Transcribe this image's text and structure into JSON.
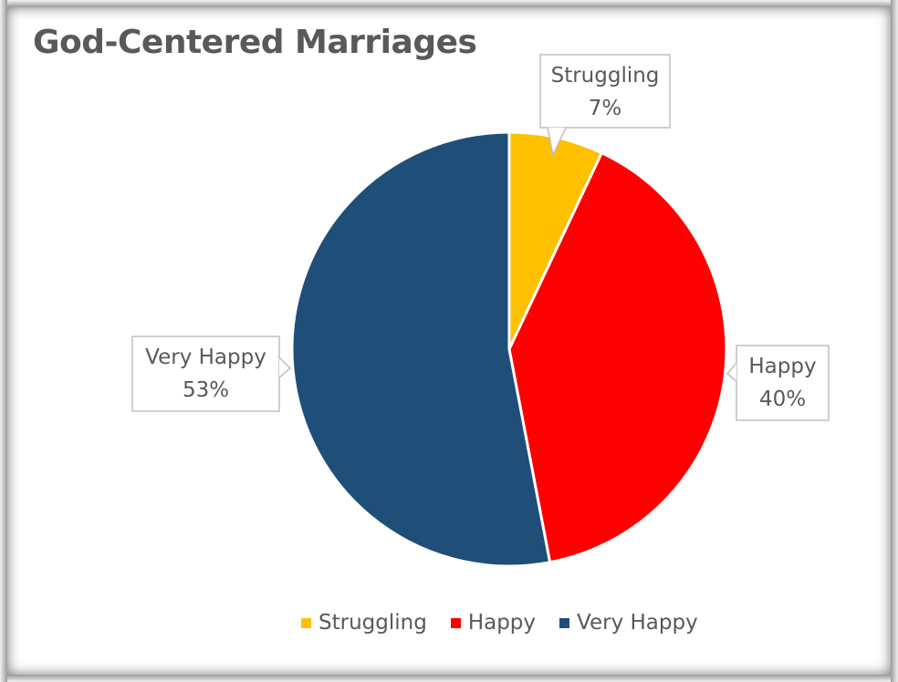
{
  "chart_data": {
    "type": "pie",
    "title": "God-Centered Marriages",
    "slices": [
      {
        "label": "Struggling",
        "value": 7,
        "display": "7%",
        "color": "#FFC000"
      },
      {
        "label": "Happy",
        "value": 40,
        "display": "40%",
        "color": "#FF0000"
      },
      {
        "label": "Very Happy",
        "value": 53,
        "display": "53%",
        "color": "#1F4E79"
      }
    ],
    "legend_position": "bottom",
    "data_labels": "callouts with category name and percentage"
  }
}
